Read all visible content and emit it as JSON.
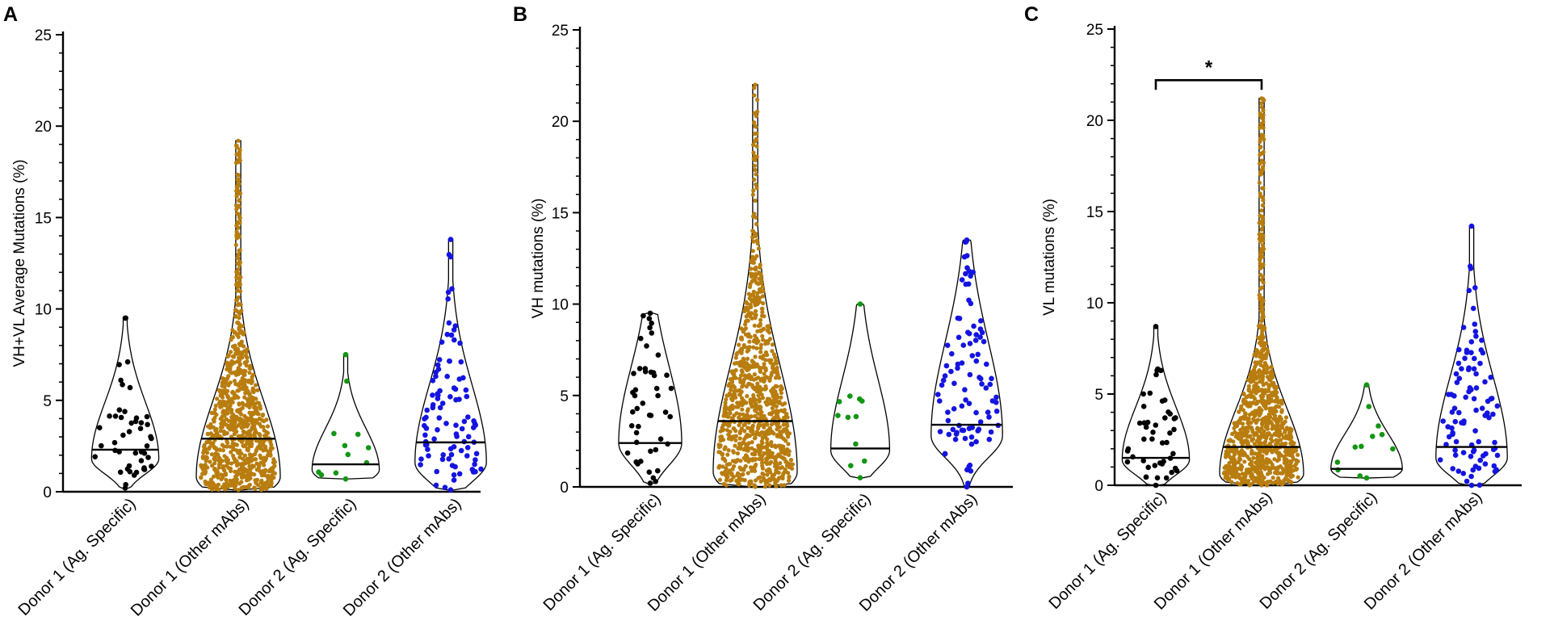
{
  "figure": {
    "description_colors": {
      "ag_specific_donor1": "#000000",
      "other_mabs_donor1": "#b87d0e",
      "ag_specific_donor2": "#129614",
      "other_mabs_donor2": "#1414e0"
    }
  },
  "chart_data": [
    {
      "panel": "A",
      "type": "violin",
      "ylabel": "VH+VL Average Mutations (%)",
      "ylim": [
        0,
        25
      ],
      "yticks": [
        0,
        5,
        10,
        15,
        20,
        25
      ],
      "categories": [
        "Donor 1 (Ag. Specific)",
        "Donor 1 (Other mAbs)",
        "Donor 2 (Ag. Specific)",
        "Donor 2 (Other mAbs)"
      ],
      "series": [
        {
          "name": "Donor 1 (Ag. Specific)",
          "color": "#000000",
          "n": 45,
          "min": 0.2,
          "max": 9.5,
          "median": 2.3,
          "peak": 1.8,
          "peakWidth": 0.8,
          "spread": 1.1,
          "skew": 2.8
        },
        {
          "name": "Donor 1 (Other mAbs)",
          "color": "#b87d0e",
          "n": 900,
          "min": 0.1,
          "max": 19.2,
          "median": 2.9,
          "peak": 0.8,
          "peakWidth": 1.0,
          "spread": 1.3,
          "skew": 3.2
        },
        {
          "name": "Donor 2 (Ag. Specific)",
          "color": "#129614",
          "n": 10,
          "min": 0.7,
          "max": 7.5,
          "median": 1.5,
          "peak": 1.2,
          "peakWidth": 0.8,
          "spread": 0.9,
          "skew": 2.5
        },
        {
          "name": "Donor 2 (Other mAbs)",
          "color": "#1414e0",
          "n": 95,
          "min": 0.1,
          "max": 13.8,
          "median": 2.7,
          "peak": 1.6,
          "peakWidth": 0.85,
          "spread": 1.4,
          "skew": 3.0
        }
      ],
      "annotations": []
    },
    {
      "panel": "B",
      "type": "violin",
      "ylabel": "VH mutations (%)",
      "ylim": [
        0,
        25
      ],
      "yticks": [
        0,
        5,
        10,
        15,
        20,
        25
      ],
      "categories": [
        "Donor 1 (Ag. Specific)",
        "Donor 1 (Other mAbs)",
        "Donor 2 (Ag. Specific)",
        "Donor 2 (Other mAbs)"
      ],
      "series": [
        {
          "name": "Donor 1 (Ag. Specific)",
          "color": "#000000",
          "n": 45,
          "min": 0.2,
          "max": 9.5,
          "median": 2.4,
          "peak": 2.4,
          "peakWidth": 0.75,
          "spread": 1.6,
          "skew": 2.6
        },
        {
          "name": "Donor 1 (Other mAbs)",
          "color": "#b87d0e",
          "n": 900,
          "min": 0.0,
          "max": 22.0,
          "median": 3.6,
          "peak": 0.8,
          "peakWidth": 1.0,
          "spread": 1.5,
          "skew": 3.8
        },
        {
          "name": "Donor 2 (Ag. Specific)",
          "color": "#129614",
          "n": 10,
          "min": 0.5,
          "max": 10.0,
          "median": 2.1,
          "peak": 2.0,
          "peakWidth": 0.7,
          "spread": 1.3,
          "skew": 3.0
        },
        {
          "name": "Donor 2 (Other mAbs)",
          "color": "#1414e0",
          "n": 95,
          "min": 0.0,
          "max": 13.5,
          "median": 3.4,
          "peak": 2.8,
          "peakWidth": 0.85,
          "spread": 1.6,
          "skew": 3.2
        }
      ],
      "annotations": []
    },
    {
      "panel": "C",
      "type": "violin",
      "ylabel": "VL mutations (%)",
      "ylim": [
        0,
        25
      ],
      "yticks": [
        0,
        5,
        10,
        15,
        20,
        25
      ],
      "categories": [
        "Donor 1 (Ag. Specific)",
        "Donor 1 (Other mAbs)",
        "Donor 2 (Ag. Specific)",
        "Donor 2 (Other mAbs)"
      ],
      "series": [
        {
          "name": "Donor 1 (Ag. Specific)",
          "color": "#000000",
          "n": 45,
          "min": 0.0,
          "max": 8.7,
          "median": 1.5,
          "peak": 1.4,
          "peakWidth": 0.8,
          "spread": 1.1,
          "skew": 2.6
        },
        {
          "name": "Donor 1 (Other mAbs)",
          "color": "#b87d0e",
          "n": 900,
          "min": 0.0,
          "max": 21.2,
          "median": 2.1,
          "peak": 0.6,
          "peakWidth": 1.0,
          "spread": 1.0,
          "skew": 3.6
        },
        {
          "name": "Donor 2 (Ag. Specific)",
          "color": "#129614",
          "n": 10,
          "min": 0.4,
          "max": 5.5,
          "median": 0.9,
          "peak": 0.9,
          "peakWidth": 0.85,
          "spread": 0.8,
          "skew": 2.4
        },
        {
          "name": "Donor 2 (Other mAbs)",
          "color": "#1414e0",
          "n": 95,
          "min": 0.0,
          "max": 14.2,
          "median": 2.1,
          "peak": 1.5,
          "peakWidth": 0.85,
          "spread": 1.3,
          "skew": 3.4
        }
      ],
      "annotations": [
        {
          "type": "significance",
          "from": "Donor 1 (Ag. Specific)",
          "to": "Donor 1 (Other mAbs)",
          "label": "*",
          "y": 22.2
        }
      ]
    }
  ]
}
